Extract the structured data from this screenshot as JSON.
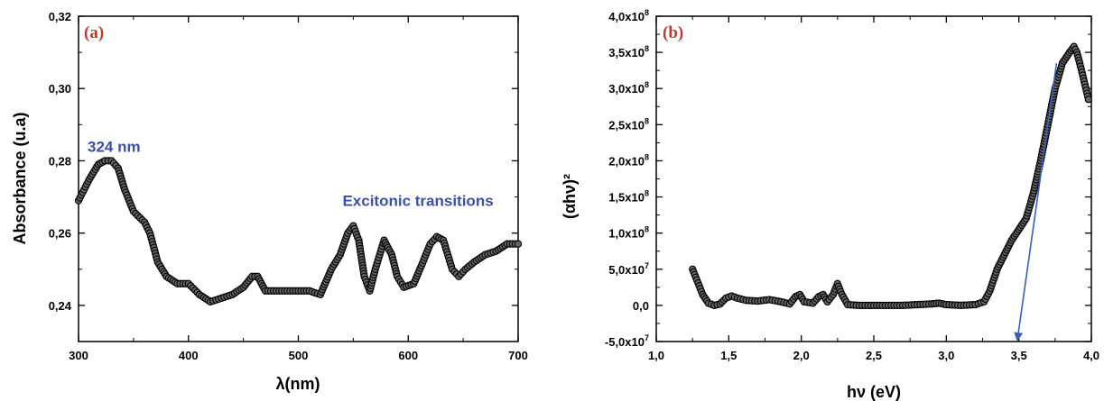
{
  "colors": {
    "panel_label": "#c0392b",
    "annotation": "#3b4fa8",
    "marker_fill": "#666666",
    "marker_stroke": "#000000",
    "fit_line": "#3a5fbf"
  },
  "chart_data": [
    {
      "type": "scatter",
      "panel_label": "(a)",
      "xlabel": "λ(nm)",
      "ylabel": "Absorbance (u.a)",
      "xlim": [
        300,
        700
      ],
      "ylim": [
        0.23,
        0.32
      ],
      "x_ticks": [
        300,
        400,
        500,
        600,
        700
      ],
      "x_tick_labels": [
        "300",
        "400",
        "500",
        "600",
        "700"
      ],
      "y_ticks": [
        0.24,
        0.26,
        0.28,
        0.3,
        0.32
      ],
      "y_tick_labels": [
        "0,24",
        "0,26",
        "0,28",
        "0,30",
        "0,32"
      ],
      "grid": false,
      "annotations": [
        {
          "text": "324 nm",
          "x": 300,
          "y": 0.2825
        },
        {
          "text": "Excitonic transitions",
          "x": 532,
          "y": 0.2675
        }
      ],
      "series": [
        {
          "points": [
            [
              300,
              0.269
            ],
            [
              310,
              0.275
            ],
            [
              318,
              0.279
            ],
            [
              324,
              0.28
            ],
            [
              330,
              0.28
            ],
            [
              336,
              0.278
            ],
            [
              342,
              0.272
            ],
            [
              350,
              0.266
            ],
            [
              360,
              0.263
            ],
            [
              365,
              0.26
            ],
            [
              372,
              0.252
            ],
            [
              380,
              0.248
            ],
            [
              390,
              0.246
            ],
            [
              400,
              0.246
            ],
            [
              410,
              0.243
            ],
            [
              420,
              0.241
            ],
            [
              430,
              0.242
            ],
            [
              440,
              0.243
            ],
            [
              450,
              0.245
            ],
            [
              458,
              0.248
            ],
            [
              463,
              0.248
            ],
            [
              470,
              0.244
            ],
            [
              480,
              0.244
            ],
            [
              500,
              0.244
            ],
            [
              510,
              0.244
            ],
            [
              520,
              0.243
            ],
            [
              530,
              0.25
            ],
            [
              538,
              0.254
            ],
            [
              545,
              0.26
            ],
            [
              550,
              0.262
            ],
            [
              555,
              0.258
            ],
            [
              560,
              0.248
            ],
            [
              565,
              0.244
            ],
            [
              570,
              0.25
            ],
            [
              578,
              0.258
            ],
            [
              585,
              0.254
            ],
            [
              590,
              0.248
            ],
            [
              596,
              0.245
            ],
            [
              605,
              0.246
            ],
            [
              612,
              0.251
            ],
            [
              620,
              0.257
            ],
            [
              626,
              0.259
            ],
            [
              632,
              0.258
            ],
            [
              640,
              0.25
            ],
            [
              646,
              0.248
            ],
            [
              652,
              0.25
            ],
            [
              660,
              0.252
            ],
            [
              670,
              0.254
            ],
            [
              680,
              0.255
            ],
            [
              690,
              0.257
            ],
            [
              700,
              0.257
            ]
          ]
        }
      ]
    },
    {
      "type": "scatter",
      "panel_label": "(b)",
      "xlabel": "hν (eV)",
      "ylabel": "(αhν)²",
      "xlim": [
        1.0,
        4.0
      ],
      "ylim": [
        -50000000.0,
        400000000.0
      ],
      "x_ticks": [
        1.0,
        1.5,
        2.0,
        2.5,
        3.0,
        3.5,
        4.0
      ],
      "x_tick_labels": [
        "1,0",
        "1,5",
        "2,0",
        "2,5",
        "3,0",
        "3,5",
        "4,0"
      ],
      "y_ticks": [
        -50000000.0,
        0,
        50000000.0,
        100000000.0,
        150000000.0,
        200000000.0,
        250000000.0,
        300000000.0,
        350000000.0,
        400000000.0
      ],
      "y_tick_labels": [
        {
          "mantissa": "-5,0x10",
          "exp": "7"
        },
        {
          "mantissa": "0,0",
          "exp": ""
        },
        {
          "mantissa": "5,0x10",
          "exp": "7"
        },
        {
          "mantissa": "1,0x10",
          "exp": "8"
        },
        {
          "mantissa": "1,5x10",
          "exp": "8"
        },
        {
          "mantissa": "2,0x10",
          "exp": "8"
        },
        {
          "mantissa": "2,5x10",
          "exp": "8"
        },
        {
          "mantissa": "3,0x10",
          "exp": "8"
        },
        {
          "mantissa": "3,5x10",
          "exp": "8"
        },
        {
          "mantissa": "4,0x10",
          "exp": "8"
        }
      ],
      "grid": false,
      "fit_line": {
        "from": [
          3.76,
          335000000.0
        ],
        "to": [
          3.49,
          -50000000.0
        ]
      },
      "series": [
        {
          "points": [
            [
              1.25,
              50000000.0
            ],
            [
              1.28,
              35000000.0
            ],
            [
              1.32,
              15000000.0
            ],
            [
              1.36,
              3000000.0
            ],
            [
              1.4,
              0.0
            ],
            [
              1.44,
              2000000.0
            ],
            [
              1.48,
              10000000.0
            ],
            [
              1.52,
              13000000.0
            ],
            [
              1.56,
              10000000.0
            ],
            [
              1.62,
              7000000.0
            ],
            [
              1.7,
              6000000.0
            ],
            [
              1.78,
              8000000.0
            ],
            [
              1.86,
              5000000.0
            ],
            [
              1.92,
              2000000.0
            ],
            [
              1.96,
              12000000.0
            ],
            [
              1.99,
              15000000.0
            ],
            [
              2.02,
              5000000.0
            ],
            [
              2.08,
              3000000.0
            ],
            [
              2.12,
              12000000.0
            ],
            [
              2.15,
              15000000.0
            ],
            [
              2.18,
              5000000.0
            ],
            [
              2.22,
              15000000.0
            ],
            [
              2.25,
              30000000.0
            ],
            [
              2.28,
              15000000.0
            ],
            [
              2.32,
              1000000.0
            ],
            [
              2.4,
              0.0
            ],
            [
              2.5,
              0.0
            ],
            [
              2.6,
              0.0
            ],
            [
              2.7,
              0.0
            ],
            [
              2.8,
              1000000.0
            ],
            [
              2.9,
              2000000.0
            ],
            [
              2.95,
              3000000.0
            ],
            [
              3.0,
              1000000.0
            ],
            [
              3.1,
              0.0
            ],
            [
              3.2,
              1000000.0
            ],
            [
              3.26,
              5000000.0
            ],
            [
              3.3,
              20000000.0
            ],
            [
              3.35,
              50000000.0
            ],
            [
              3.4,
              70000000.0
            ],
            [
              3.45,
              90000000.0
            ],
            [
              3.5,
              105000000.0
            ],
            [
              3.55,
              120000000.0
            ],
            [
              3.6,
              155000000.0
            ],
            [
              3.65,
              200000000.0
            ],
            [
              3.7,
              250000000.0
            ],
            [
              3.75,
              300000000.0
            ],
            [
              3.8,
              335000000.0
            ],
            [
              3.85,
              350000000.0
            ],
            [
              3.88,
              358000000.0
            ],
            [
              3.9,
              350000000.0
            ],
            [
              3.92,
              335000000.0
            ],
            [
              3.95,
              310000000.0
            ],
            [
              3.98,
              285000000.0
            ]
          ]
        }
      ]
    }
  ]
}
